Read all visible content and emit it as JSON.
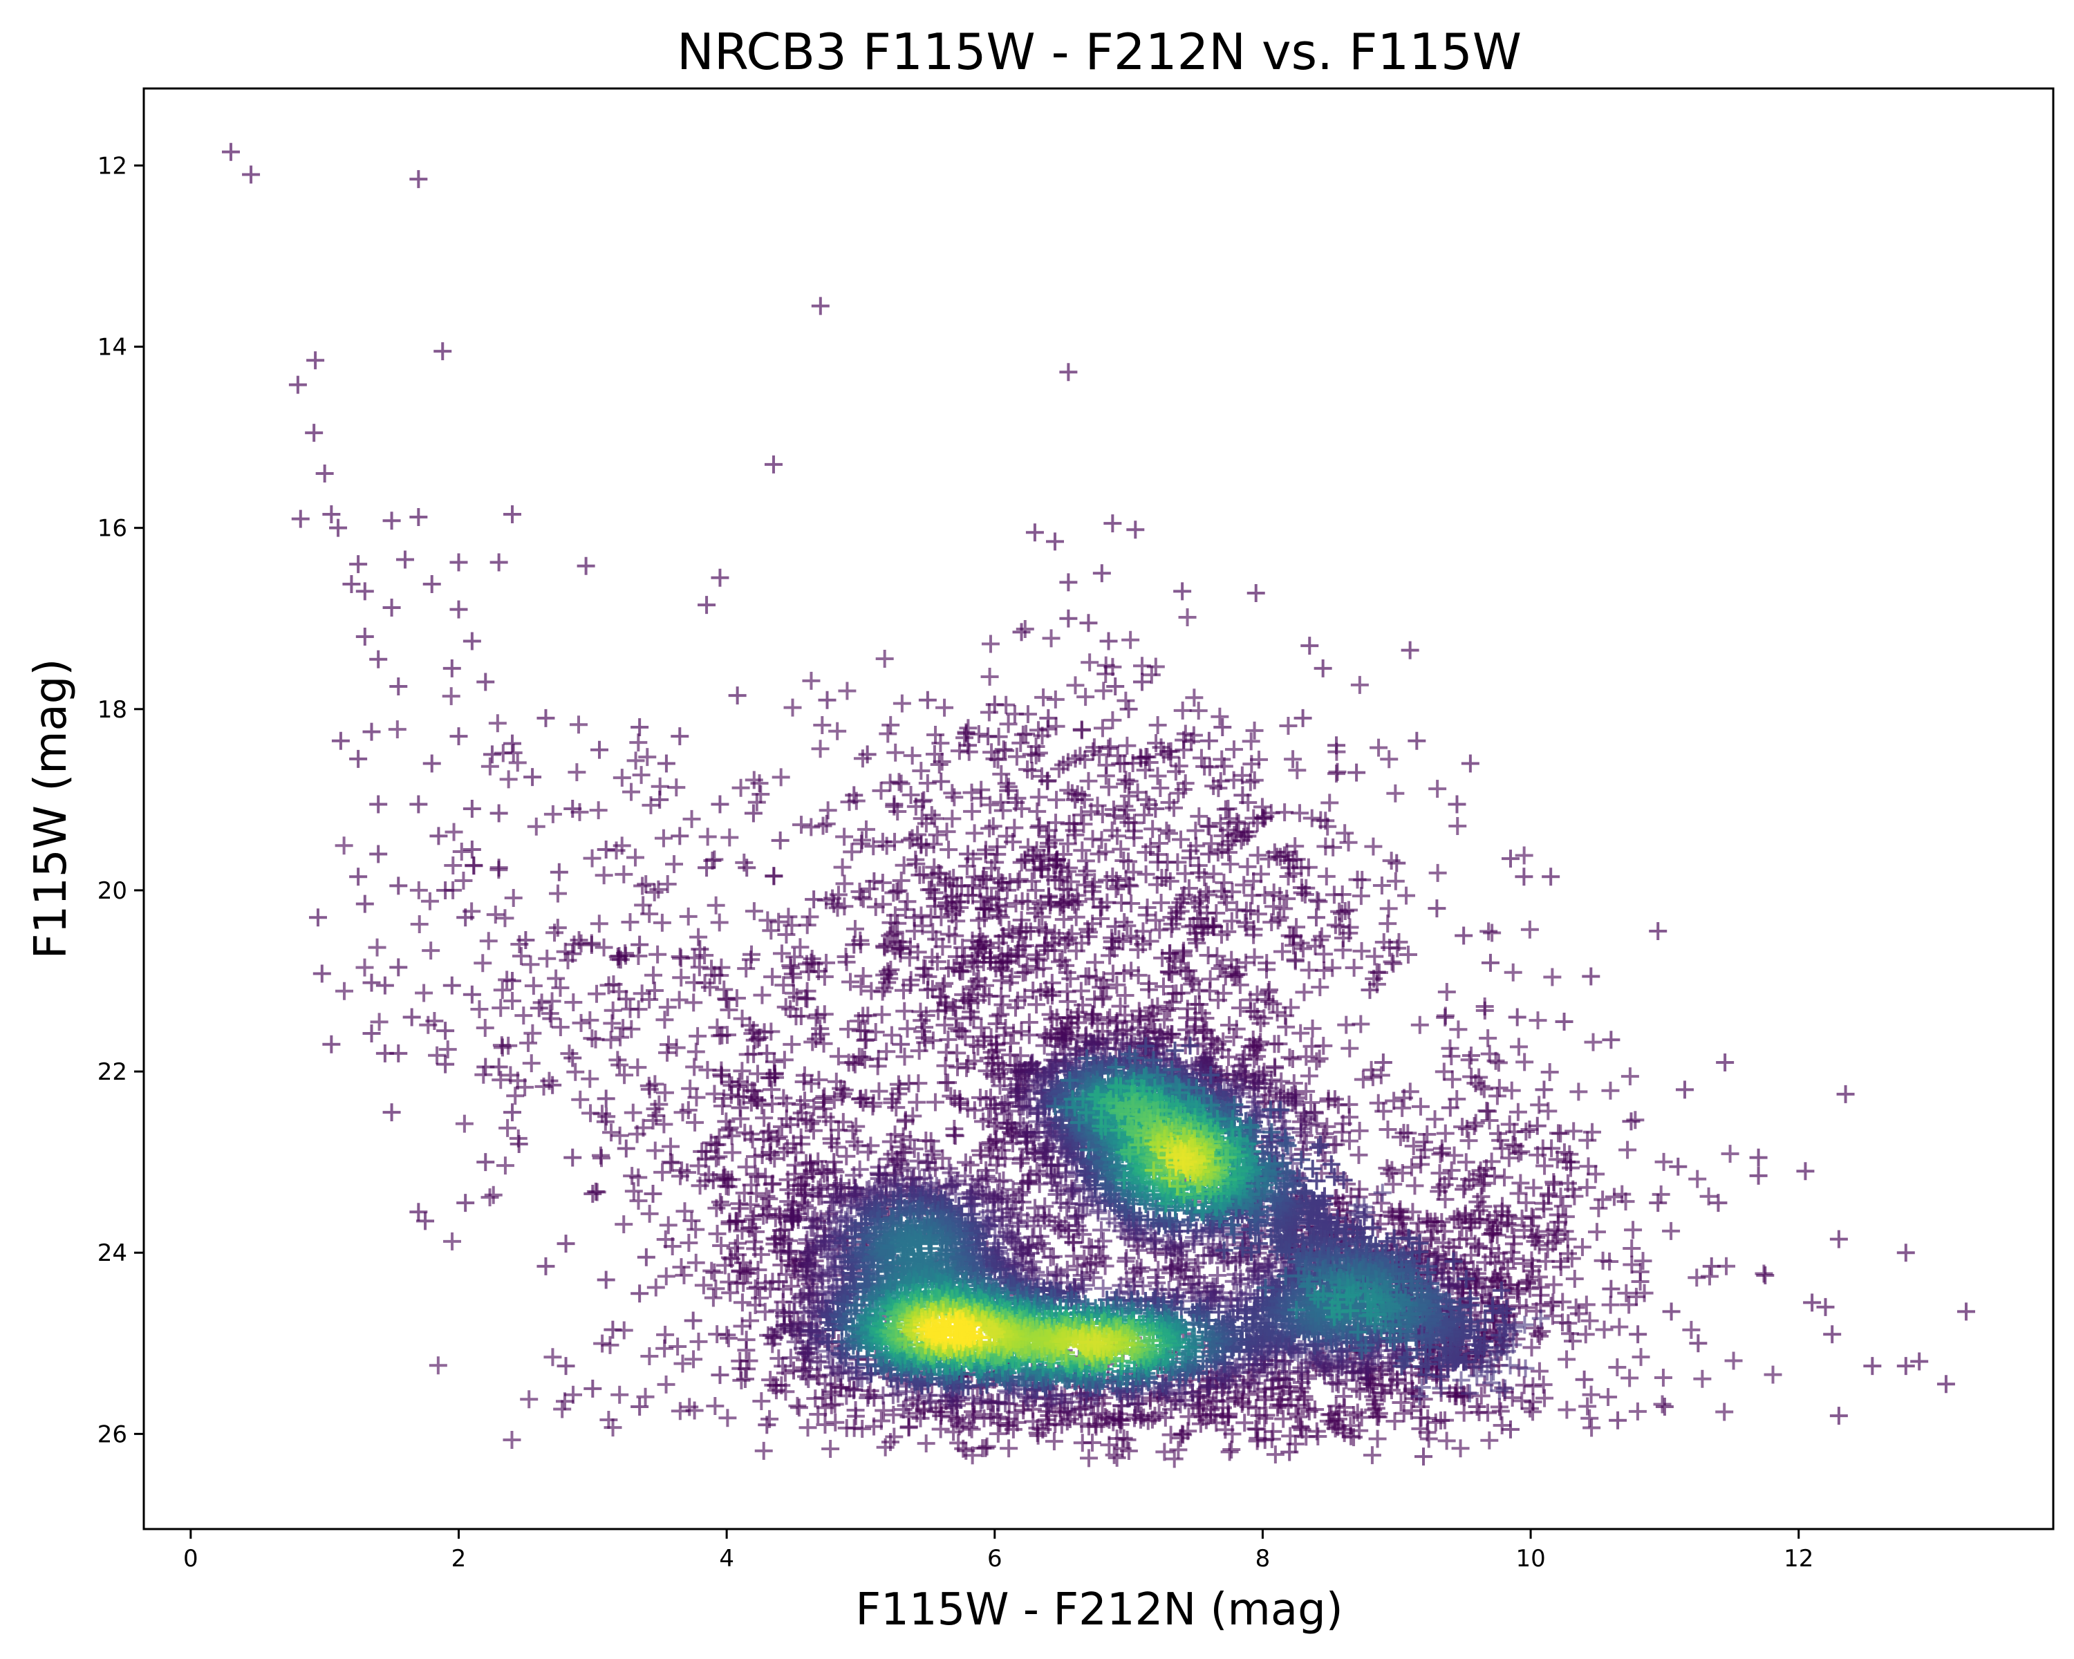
{
  "chart_data": {
    "type": "scatter",
    "title": "NRCB3 F115W - F212N vs. F115W",
    "xlabel": "F115W - F212N (mag)",
    "ylabel": "F115W (mag)",
    "xlim": [
      -0.35,
      13.9
    ],
    "ylim": [
      27.05,
      11.15
    ],
    "y_inverted": true,
    "marker": "+",
    "colormap": "viridis",
    "density_colored": true,
    "grid": false,
    "legend": "none",
    "x_ticks": [
      0,
      2,
      4,
      6,
      8,
      10,
      12
    ],
    "x_tick_labels": [
      "0",
      "2",
      "4",
      "6",
      "8",
      "10",
      "12"
    ],
    "y_ticks": [
      12,
      14,
      16,
      18,
      20,
      22,
      24,
      26
    ],
    "y_tick_labels": [
      "12",
      "14",
      "16",
      "18",
      "20",
      "22",
      "24",
      "26"
    ],
    "colors": {
      "low_density": "#440154",
      "mid_density": "#21918c",
      "high_density": "#fde725"
    },
    "series": [
      {
        "points": [
          [
            0.3,
            11.85
          ],
          [
            0.45,
            12.1
          ],
          [
            1.7,
            12.15
          ],
          [
            4.7,
            13.55
          ],
          [
            0.93,
            14.15
          ],
          [
            1.88,
            14.05
          ],
          [
            0.8,
            14.42
          ],
          [
            6.55,
            14.28
          ],
          [
            0.92,
            14.95
          ],
          [
            1.0,
            15.4
          ],
          [
            4.35,
            15.3
          ],
          [
            1.05,
            15.85
          ],
          [
            0.82,
            15.9
          ],
          [
            1.5,
            15.92
          ],
          [
            1.7,
            15.88
          ],
          [
            2.4,
            15.85
          ],
          [
            6.88,
            15.95
          ],
          [
            7.05,
            16.02
          ],
          [
            6.3,
            16.05
          ],
          [
            6.45,
            16.15
          ],
          [
            1.1,
            16.0
          ],
          [
            1.25,
            16.4
          ],
          [
            1.6,
            16.35
          ],
          [
            2.0,
            16.38
          ],
          [
            2.3,
            16.38
          ],
          [
            2.95,
            16.42
          ],
          [
            3.95,
            16.55
          ],
          [
            6.8,
            16.5
          ],
          [
            6.55,
            16.6
          ],
          [
            7.4,
            16.7
          ],
          [
            7.95,
            16.72
          ],
          [
            1.2,
            16.62
          ],
          [
            1.3,
            16.7
          ],
          [
            1.8,
            16.62
          ],
          [
            1.5,
            16.88
          ],
          [
            2.0,
            16.9
          ],
          [
            3.85,
            16.85
          ],
          [
            6.55,
            17.0
          ],
          [
            6.7,
            17.05
          ],
          [
            6.2,
            17.15
          ],
          [
            6.85,
            17.25
          ],
          [
            1.3,
            17.2
          ],
          [
            1.4,
            17.45
          ],
          [
            2.1,
            17.25
          ],
          [
            1.95,
            17.55
          ],
          [
            4.75,
            17.9
          ],
          [
            4.08,
            17.85
          ],
          [
            7.1,
            17.7
          ],
          [
            9.1,
            17.35
          ],
          [
            8.35,
            17.3
          ],
          [
            8.45,
            17.55
          ],
          [
            5.5,
            17.9
          ],
          [
            6.0,
            17.95
          ],
          [
            6.9,
            17.75
          ],
          [
            1.55,
            17.75
          ],
          [
            2.2,
            17.7
          ],
          [
            1.35,
            18.25
          ],
          [
            1.12,
            18.35
          ],
          [
            2.0,
            18.3
          ],
          [
            2.65,
            18.1
          ],
          [
            3.35,
            18.2
          ],
          [
            3.65,
            18.3
          ],
          [
            8.55,
            18.4
          ],
          [
            9.15,
            18.35
          ],
          [
            1.25,
            18.55
          ],
          [
            1.8,
            18.6
          ],
          [
            2.25,
            18.5
          ],
          [
            2.4,
            18.38
          ],
          [
            2.55,
            18.75
          ],
          [
            3.05,
            18.45
          ],
          [
            3.55,
            18.6
          ],
          [
            5.05,
            18.5
          ],
          [
            5.95,
            18.3
          ],
          [
            7.6,
            18.35
          ],
          [
            9.55,
            18.6
          ],
          [
            1.4,
            19.05
          ],
          [
            1.7,
            19.05
          ],
          [
            2.1,
            19.1
          ],
          [
            2.3,
            19.15
          ],
          [
            2.85,
            19.1
          ],
          [
            3.5,
            19.0
          ],
          [
            3.95,
            19.05
          ],
          [
            4.2,
            19.15
          ],
          [
            4.4,
            19.45
          ],
          [
            4.95,
            18.95
          ],
          [
            5.25,
            19.05
          ],
          [
            8.0,
            19.2
          ],
          [
            9.45,
            19.05
          ],
          [
            1.4,
            19.6
          ],
          [
            1.85,
            19.4
          ],
          [
            2.1,
            19.55
          ],
          [
            2.3,
            19.75
          ],
          [
            2.75,
            19.8
          ],
          [
            3.1,
            19.55
          ],
          [
            3.65,
            19.4
          ],
          [
            3.85,
            19.75
          ],
          [
            4.15,
            19.75
          ],
          [
            9.85,
            19.65
          ],
          [
            9.95,
            19.85
          ],
          [
            10.15,
            19.85
          ],
          [
            1.25,
            19.85
          ],
          [
            1.55,
            19.95
          ],
          [
            1.9,
            20.0
          ],
          [
            0.95,
            20.3
          ],
          [
            1.3,
            20.15
          ],
          [
            2.05,
            20.3
          ],
          [
            2.5,
            20.55
          ],
          [
            2.85,
            20.7
          ],
          [
            3.35,
            20.6
          ],
          [
            3.8,
            20.65
          ],
          [
            4.65,
            20.1
          ],
          [
            4.8,
            20.15
          ],
          [
            5.1,
            19.9
          ],
          [
            9.5,
            20.5
          ],
          [
            10.95,
            20.45
          ],
          [
            1.55,
            20.85
          ],
          [
            1.95,
            21.05
          ],
          [
            2.4,
            21.0
          ],
          [
            0.98,
            20.92
          ],
          [
            1.35,
            21.02
          ],
          [
            1.45,
            21.05
          ],
          [
            1.65,
            21.4
          ],
          [
            2.1,
            21.15
          ],
          [
            2.6,
            21.3
          ],
          [
            3.25,
            21.2
          ],
          [
            10.45,
            20.95
          ],
          [
            1.05,
            21.7
          ],
          [
            1.35,
            21.58
          ],
          [
            1.45,
            21.8
          ],
          [
            1.55,
            21.8
          ],
          [
            1.9,
            21.55
          ],
          [
            2.3,
            21.95
          ],
          [
            2.85,
            21.85
          ],
          [
            10.25,
            21.45
          ],
          [
            10.6,
            21.65
          ],
          [
            11.45,
            21.9
          ],
          [
            1.9,
            21.92
          ],
          [
            2.2,
            21.95
          ],
          [
            2.7,
            22.15
          ],
          [
            2.4,
            22.45
          ],
          [
            3.1,
            22.3
          ],
          [
            10.75,
            22.55
          ],
          [
            11.15,
            22.2
          ],
          [
            12.35,
            22.25
          ],
          [
            1.5,
            22.45
          ],
          [
            2.45,
            22.8
          ],
          [
            2.85,
            22.95
          ],
          [
            3.25,
            22.85
          ],
          [
            2.2,
            23.0
          ],
          [
            10.05,
            22.6
          ],
          [
            11.1,
            23.05
          ],
          [
            11.7,
            22.95
          ],
          [
            12.05,
            23.1
          ],
          [
            1.7,
            23.55
          ],
          [
            1.75,
            23.65
          ],
          [
            2.05,
            23.45
          ],
          [
            3.0,
            23.35
          ],
          [
            3.45,
            23.35
          ],
          [
            10.95,
            23.45
          ],
          [
            11.7,
            23.15
          ],
          [
            11.4,
            23.45
          ],
          [
            12.3,
            23.85
          ],
          [
            12.8,
            24.0
          ],
          [
            2.65,
            24.15
          ],
          [
            2.8,
            23.9
          ],
          [
            3.1,
            24.3
          ],
          [
            3.4,
            24.05
          ],
          [
            3.35,
            24.45
          ],
          [
            11.35,
            24.15
          ],
          [
            11.75,
            24.25
          ],
          [
            12.1,
            24.55
          ],
          [
            12.2,
            24.6
          ],
          [
            13.25,
            24.65
          ],
          [
            3.15,
            24.85
          ],
          [
            3.75,
            24.75
          ],
          [
            3.95,
            25.35
          ],
          [
            11.05,
            24.65
          ],
          [
            11.25,
            25.0
          ],
          [
            12.25,
            24.9
          ],
          [
            12.55,
            25.25
          ],
          [
            12.8,
            25.25
          ],
          [
            12.3,
            25.8
          ],
          [
            12.9,
            25.2
          ],
          [
            13.1,
            25.45
          ],
          [
            2.8,
            25.25
          ],
          [
            3.0,
            25.5
          ],
          [
            3.35,
            25.7
          ],
          [
            4.3,
            25.9
          ],
          [
            5.6,
            25.8
          ],
          [
            6.95,
            25.85
          ],
          [
            8.2,
            26.2
          ],
          [
            9.2,
            26.25
          ],
          [
            9.85,
            25.95
          ],
          [
            10.65,
            25.85
          ],
          [
            11.0,
            25.7
          ],
          [
            5.6,
            18.8
          ],
          [
            6.1,
            18.9
          ],
          [
            6.6,
            19.0
          ],
          [
            7.2,
            19.1
          ],
          [
            7.85,
            18.95
          ],
          [
            8.7,
            18.7
          ],
          [
            5.8,
            19.6
          ],
          [
            6.4,
            19.85
          ],
          [
            7.6,
            19.6
          ],
          [
            8.2,
            19.75
          ],
          [
            9.0,
            19.7
          ],
          [
            4.95,
            20.6
          ],
          [
            5.4,
            20.3
          ],
          [
            9.3,
            20.2
          ],
          [
            9.7,
            20.8
          ],
          [
            4.6,
            21.2
          ],
          [
            4.3,
            21.8
          ],
          [
            9.9,
            21.4
          ],
          [
            10.1,
            22.2
          ],
          [
            4.1,
            22.4
          ],
          [
            3.9,
            23.2
          ],
          [
            10.3,
            23.0
          ],
          [
            10.2,
            23.8
          ],
          [
            4.4,
            23.6
          ],
          [
            4.1,
            24.2
          ],
          [
            10.6,
            24.4
          ],
          [
            10.8,
            24.9
          ],
          [
            4.7,
            24.7
          ],
          [
            4.5,
            25.3
          ],
          [
            5.1,
            25.6
          ],
          [
            6.4,
            25.9
          ],
          [
            7.4,
            26.0
          ],
          [
            8.6,
            25.95
          ],
          [
            9.6,
            25.7
          ],
          [
            10.4,
            25.4
          ],
          [
            5.8,
            18.4
          ],
          [
            6.4,
            18.1
          ],
          [
            7.0,
            18.0
          ],
          [
            7.7,
            18.2
          ],
          [
            8.3,
            18.1
          ],
          [
            6.9,
            20.4
          ],
          [
            7.3,
            20.9
          ],
          [
            6.1,
            20.7
          ],
          [
            8.4,
            20.3
          ],
          [
            8.8,
            21.1
          ],
          [
            5.5,
            21.1
          ],
          [
            5.3,
            21.7
          ],
          [
            8.9,
            21.9
          ],
          [
            9.4,
            22.4
          ],
          [
            5.0,
            22.3
          ],
          [
            4.8,
            23.0
          ],
          [
            9.5,
            23.3
          ],
          [
            9.8,
            24.1
          ],
          [
            5.2,
            23.6
          ],
          [
            5.6,
            24.1
          ],
          [
            6.6,
            24.4
          ],
          [
            7.2,
            24.0
          ],
          [
            8.4,
            24.3
          ],
          [
            9.0,
            24.7
          ],
          [
            6.0,
            25.4
          ],
          [
            7.6,
            25.5
          ],
          [
            8.8,
            25.4
          ],
          [
            9.5,
            25.2
          ]
        ]
      }
    ]
  }
}
